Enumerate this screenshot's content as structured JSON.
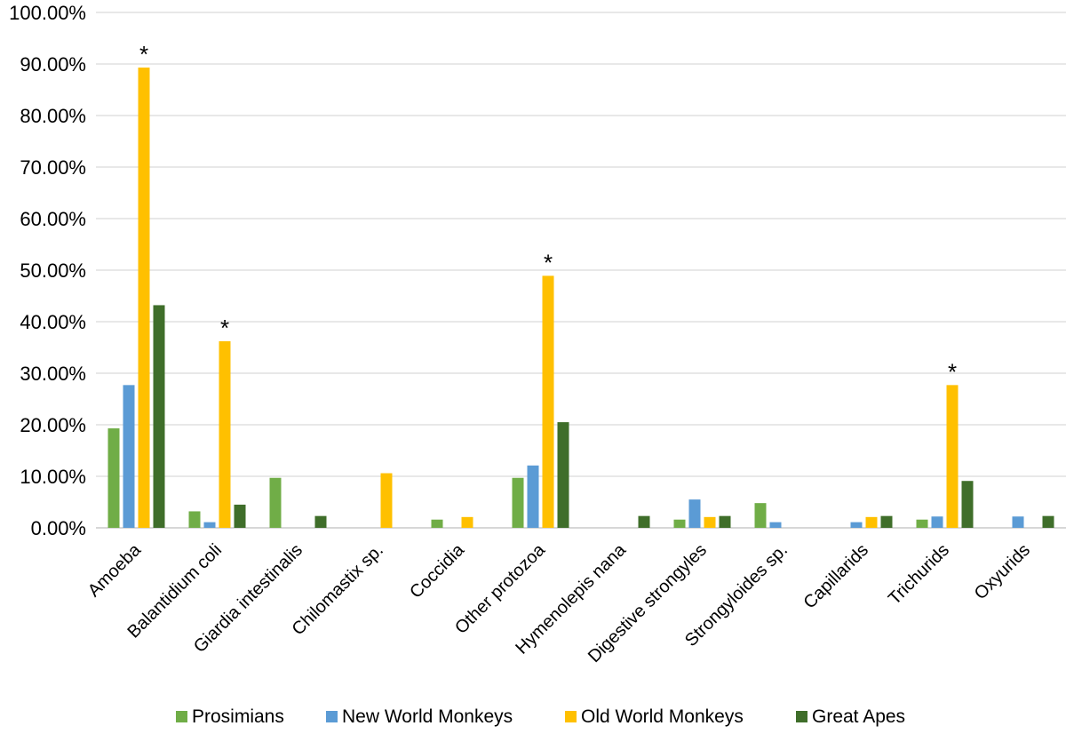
{
  "chart_data": {
    "type": "bar",
    "categories": [
      "Amoeba",
      "Balantidium coli",
      "Giardia  intestinalis",
      "Chilomastix sp.",
      "Coccidia",
      "Other protozoa",
      "Hymenolepis nana",
      "Digestive strongyles",
      "Strongyloides sp.",
      "Capillarids",
      "Trichurids",
      "Oxyurids"
    ],
    "series": [
      {
        "name": "Prosimians",
        "color": "#70AD47",
        "values": [
          19.3,
          3.2,
          9.7,
          0,
          1.6,
          9.7,
          0,
          1.6,
          4.8,
          0,
          1.6,
          0
        ]
      },
      {
        "name": "New World Monkeys",
        "color": "#5B9BD5",
        "values": [
          27.7,
          1.1,
          0,
          0,
          0,
          12.1,
          0,
          5.5,
          1.1,
          1.1,
          2.2,
          2.2
        ]
      },
      {
        "name": "Old World Monkeys",
        "color": "#FFC000",
        "values": [
          89.3,
          36.2,
          0,
          10.6,
          2.1,
          48.9,
          0,
          2.1,
          0,
          2.1,
          27.7,
          0
        ]
      },
      {
        "name": "Great Apes",
        "color": "#3F6E2A",
        "values": [
          43.2,
          4.5,
          2.3,
          0,
          0,
          20.5,
          2.3,
          2.3,
          0,
          2.3,
          9.1,
          2.3
        ]
      }
    ],
    "y_ticks": [
      "0.00%",
      "10.00%",
      "20.00%",
      "30.00%",
      "40.00%",
      "50.00%",
      "60.00%",
      "70.00%",
      "80.00%",
      "90.00%",
      "100.00%"
    ],
    "ylim": [
      0,
      100
    ],
    "annotations": [
      {
        "text": "*",
        "category": "Amoeba",
        "series": "Old World Monkeys"
      },
      {
        "text": "*",
        "category": "Balantidium coli",
        "series": "Old World Monkeys"
      },
      {
        "text": "*",
        "category": "Other protozoa",
        "series": "Old World Monkeys"
      },
      {
        "text": "*",
        "category": "Trichurids",
        "series": "Old World Monkeys"
      }
    ],
    "grid": true,
    "legend_position": "bottom"
  }
}
